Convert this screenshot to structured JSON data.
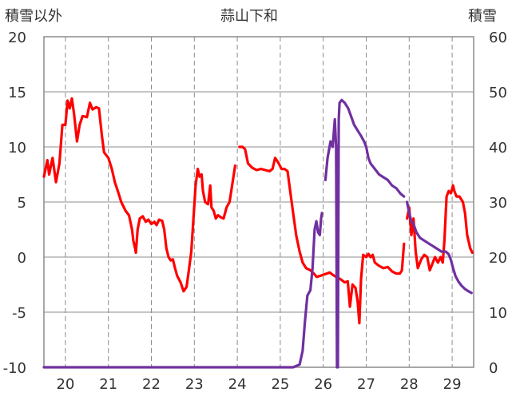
{
  "chart_data": {
    "type": "line",
    "title": "蒜山下和",
    "ylabel_left": "積雪以外",
    "ylabel_right": "積雪",
    "y_left": {
      "min": -10,
      "max": 20,
      "ticks": [
        -10,
        -5,
        0,
        5,
        10,
        15,
        20
      ]
    },
    "y_right": {
      "min": 0,
      "max": 60,
      "ticks": [
        0,
        10,
        20,
        30,
        40,
        50,
        60
      ]
    },
    "x": {
      "min": 19.5,
      "max": 29.5,
      "ticks": [
        20,
        21,
        22,
        23,
        24,
        25,
        26,
        27,
        28,
        29
      ]
    },
    "grid": true,
    "series": [
      {
        "color": "#ff0000",
        "axis": "left",
        "segments": [
          [
            [
              19.5,
              7.3
            ],
            [
              19.58,
              8.8
            ],
            [
              19.62,
              7.5
            ],
            [
              19.7,
              9.0
            ],
            [
              19.78,
              6.8
            ],
            [
              19.86,
              8.5
            ],
            [
              19.93,
              12.0
            ],
            [
              20.0,
              12.0
            ],
            [
              20.05,
              14.2
            ],
            [
              20.1,
              13.5
            ],
            [
              20.15,
              14.4
            ],
            [
              20.2,
              13.0
            ],
            [
              20.27,
              10.5
            ],
            [
              20.33,
              12.0
            ],
            [
              20.4,
              12.8
            ],
            [
              20.5,
              12.7
            ],
            [
              20.57,
              14.0
            ],
            [
              20.63,
              13.4
            ],
            [
              20.72,
              13.6
            ],
            [
              20.78,
              13.5
            ],
            [
              20.85,
              11.0
            ],
            [
              20.9,
              9.5
            ],
            [
              21.0,
              9.0
            ],
            [
              21.08,
              8.0
            ],
            [
              21.15,
              6.8
            ],
            [
              21.22,
              6.0
            ],
            [
              21.3,
              5.0
            ],
            [
              21.4,
              4.2
            ],
            [
              21.48,
              3.8
            ],
            [
              21.55,
              2.5
            ],
            [
              21.58,
              1.5
            ],
            [
              21.62,
              0.8
            ],
            [
              21.64,
              0.4
            ],
            [
              21.68,
              2.5
            ],
            [
              21.73,
              3.5
            ],
            [
              21.8,
              3.7
            ],
            [
              21.87,
              3.2
            ],
            [
              21.93,
              3.4
            ],
            [
              22.0,
              3.0
            ],
            [
              22.07,
              3.2
            ],
            [
              22.12,
              2.9
            ],
            [
              22.18,
              3.4
            ],
            [
              22.25,
              3.3
            ],
            [
              22.3,
              2.5
            ],
            [
              22.35,
              0.8
            ],
            [
              22.4,
              0.0
            ],
            [
              22.45,
              -0.3
            ],
            [
              22.5,
              -0.2
            ],
            [
              22.55,
              -1.0
            ],
            [
              22.6,
              -1.7
            ],
            [
              22.68,
              -2.3
            ],
            [
              22.75,
              -3.1
            ],
            [
              22.82,
              -2.7
            ],
            [
              22.88,
              -1.0
            ],
            [
              22.93,
              0.5
            ],
            [
              22.98,
              3.5
            ],
            [
              23.03,
              6.5
            ],
            [
              23.08,
              8.0
            ],
            [
              23.12,
              7.3
            ],
            [
              23.17,
              7.5
            ],
            [
              23.2,
              6.0
            ],
            [
              23.25,
              5.0
            ],
            [
              23.32,
              4.8
            ],
            [
              23.37,
              6.5
            ],
            [
              23.4,
              4.5
            ],
            [
              23.45,
              4.2
            ],
            [
              23.5,
              3.5
            ],
            [
              23.55,
              3.8
            ],
            [
              23.62,
              3.6
            ],
            [
              23.68,
              3.5
            ],
            [
              23.75,
              4.5
            ],
            [
              23.82,
              5.0
            ],
            [
              23.88,
              6.5
            ],
            [
              23.95,
              8.3
            ]
          ],
          [
            [
              24.05,
              10.0
            ],
            [
              24.12,
              10.0
            ],
            [
              24.18,
              9.8
            ],
            [
              24.25,
              8.5
            ],
            [
              24.35,
              8.1
            ],
            [
              24.45,
              7.9
            ],
            [
              24.55,
              8.0
            ],
            [
              24.65,
              7.9
            ],
            [
              24.75,
              7.8
            ],
            [
              24.82,
              8.0
            ],
            [
              24.88,
              9.0
            ],
            [
              24.95,
              8.6
            ],
            [
              25.03,
              8.0
            ],
            [
              25.1,
              8.0
            ],
            [
              25.17,
              7.8
            ],
            [
              25.23,
              6.0
            ],
            [
              25.3,
              4.0
            ],
            [
              25.37,
              2.0
            ],
            [
              25.45,
              0.5
            ],
            [
              25.52,
              -0.5
            ],
            [
              25.6,
              -1.0
            ],
            [
              25.7,
              -1.2
            ],
            [
              25.78,
              -1.5
            ],
            [
              25.85,
              -1.8
            ],
            [
              25.93,
              -1.7
            ],
            [
              26.0,
              -1.6
            ],
            [
              26.08,
              -1.5
            ],
            [
              26.15,
              -1.4
            ],
            [
              26.22,
              -1.6
            ],
            [
              26.3,
              -1.8
            ],
            [
              26.4,
              -2.0
            ],
            [
              26.5,
              -2.3
            ],
            [
              26.57,
              -2.2
            ],
            [
              26.62,
              -4.5
            ],
            [
              26.68,
              -2.5
            ],
            [
              26.75,
              -2.8
            ],
            [
              26.8,
              -4.0
            ],
            [
              26.84,
              -6.0
            ],
            [
              26.88,
              -2.0
            ],
            [
              26.93,
              0.2
            ],
            [
              27.0,
              0.0
            ],
            [
              27.05,
              0.3
            ],
            [
              27.1,
              0.0
            ],
            [
              27.15,
              0.2
            ],
            [
              27.2,
              -0.5
            ],
            [
              27.3,
              -0.8
            ],
            [
              27.4,
              -1.0
            ],
            [
              27.5,
              -0.9
            ],
            [
              27.6,
              -1.3
            ],
            [
              27.7,
              -1.5
            ],
            [
              27.78,
              -1.5
            ],
            [
              27.83,
              -1.2
            ],
            [
              27.88,
              1.2
            ]
          ],
          [
            [
              27.95,
              3.5
            ],
            [
              28.0,
              4.5
            ],
            [
              28.05,
              2.0
            ],
            [
              28.1,
              3.5
            ],
            [
              28.15,
              0.5
            ],
            [
              28.2,
              -1.0
            ],
            [
              28.28,
              -0.2
            ],
            [
              28.35,
              0.2
            ],
            [
              28.42,
              0.0
            ],
            [
              28.48,
              -1.2
            ],
            [
              28.55,
              -0.5
            ],
            [
              28.6,
              0.0
            ],
            [
              28.67,
              -0.5
            ],
            [
              28.73,
              0.0
            ],
            [
              28.78,
              -0.5
            ],
            [
              28.82,
              1.5
            ],
            [
              28.87,
              5.5
            ],
            [
              28.92,
              6.0
            ],
            [
              28.97,
              5.8
            ],
            [
              29.02,
              6.5
            ],
            [
              29.05,
              6.0
            ],
            [
              29.1,
              5.5
            ],
            [
              29.17,
              5.5
            ],
            [
              29.25,
              5.0
            ],
            [
              29.3,
              4.0
            ],
            [
              29.35,
              2.0
            ],
            [
              29.42,
              0.8
            ],
            [
              29.47,
              0.4
            ]
          ]
        ]
      },
      {
        "color": "#7030a0",
        "axis": "right",
        "segments": [
          [
            [
              19.5,
              0.0
            ],
            [
              20.5,
              0.0
            ],
            [
              21.5,
              0.0
            ],
            [
              22.5,
              0.0
            ],
            [
              23.5,
              0.0
            ],
            [
              24.5,
              0.0
            ],
            [
              25.0,
              0.0
            ],
            [
              25.3,
              0.0
            ],
            [
              25.45,
              0.5
            ],
            [
              25.52,
              3.0
            ],
            [
              25.57,
              8.0
            ],
            [
              25.63,
              13.0
            ],
            [
              25.7,
              14.0
            ],
            [
              25.75,
              18.0
            ],
            [
              25.8,
              25.0
            ],
            [
              25.84,
              26.5
            ],
            [
              25.88,
              24.5
            ],
            [
              25.92,
              24.0
            ],
            [
              25.95,
              27.0
            ],
            [
              25.97,
              28.0
            ]
          ],
          [
            [
              26.05,
              34.0
            ],
            [
              26.1,
              38.0
            ],
            [
              26.17,
              41.0
            ],
            [
              26.22,
              40.0
            ],
            [
              26.27,
              45.0
            ],
            [
              26.3,
              40.0
            ],
            [
              26.32,
              0.0
            ],
            [
              26.34,
              0.0
            ],
            [
              26.36,
              45.0
            ],
            [
              26.38,
              48.0
            ],
            [
              26.43,
              48.5
            ],
            [
              26.5,
              48.0
            ],
            [
              26.58,
              47.0
            ],
            [
              26.65,
              45.5
            ],
            [
              26.72,
              44.0
            ],
            [
              26.8,
              43.0
            ],
            [
              26.88,
              42.0
            ],
            [
              26.95,
              41.0
            ],
            [
              27.0,
              40.0
            ],
            [
              27.05,
              38.0
            ],
            [
              27.1,
              37.0
            ],
            [
              27.2,
              36.0
            ],
            [
              27.3,
              35.0
            ],
            [
              27.4,
              34.5
            ],
            [
              27.5,
              34.0
            ],
            [
              27.6,
              33.0
            ],
            [
              27.7,
              32.5
            ],
            [
              27.8,
              31.5
            ],
            [
              27.88,
              31.0
            ]
          ],
          [
            [
              27.95,
              30.0
            ],
            [
              28.0,
              28.0
            ],
            [
              28.05,
              26.5
            ],
            [
              28.1,
              26.0
            ],
            [
              28.17,
              24.5
            ],
            [
              28.25,
              23.5
            ],
            [
              28.35,
              23.0
            ],
            [
              28.45,
              22.5
            ],
            [
              28.55,
              22.0
            ],
            [
              28.65,
              21.5
            ],
            [
              28.75,
              21.0
            ],
            [
              28.85,
              21.0
            ],
            [
              28.92,
              20.5
            ],
            [
              28.97,
              19.5
            ],
            [
              29.02,
              18.0
            ],
            [
              29.08,
              16.5
            ],
            [
              29.15,
              15.5
            ],
            [
              29.22,
              14.8
            ],
            [
              29.3,
              14.2
            ],
            [
              29.38,
              13.8
            ],
            [
              29.45,
              13.5
            ]
          ]
        ]
      }
    ]
  }
}
